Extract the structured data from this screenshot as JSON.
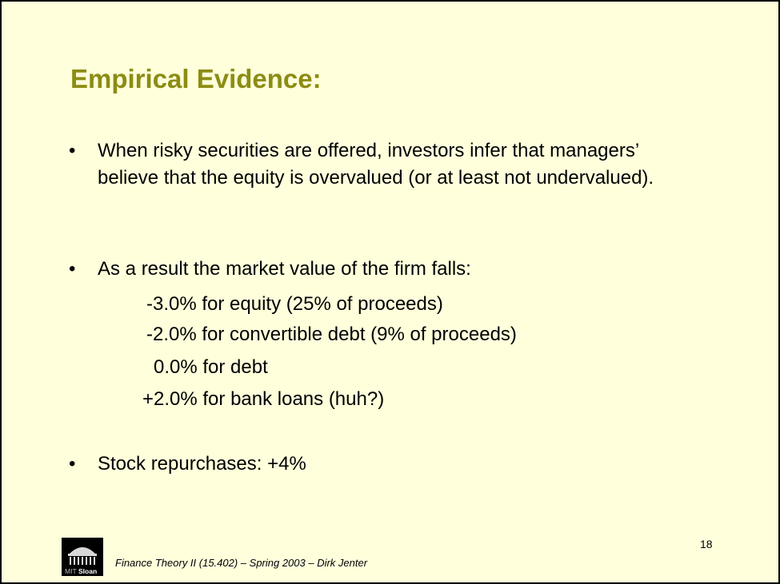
{
  "slide": {
    "title": "Empirical Evidence:",
    "bullets": [
      {
        "symbol": "•",
        "text": "When risky securities are offered, investors infer that managers’ believe that the equity is overvalued (or at least not undervalued)."
      },
      {
        "symbol": "•",
        "text": "As a result the market value of the firm falls:"
      },
      {
        "symbol": "•",
        "text": "Stock repurchases: +4%"
      }
    ],
    "sublines": [
      "-3.0% for equity (25% of proceeds)",
      "-2.0% for convertible debt (9% of proceeds)",
      "0.0% for debt",
      "+2.0% for bank loans (huh?)"
    ],
    "page_number": "18",
    "footer": "Finance Theory II (15.402) – Spring 2003 – Dirk Jenter",
    "logo": {
      "text_a": "MIT",
      "text_b": "Sloan",
      "icon": "mit-dome-icon"
    },
    "colors": {
      "background": "#ffffdc",
      "title": "#8c8c14",
      "text": "#000000"
    }
  }
}
